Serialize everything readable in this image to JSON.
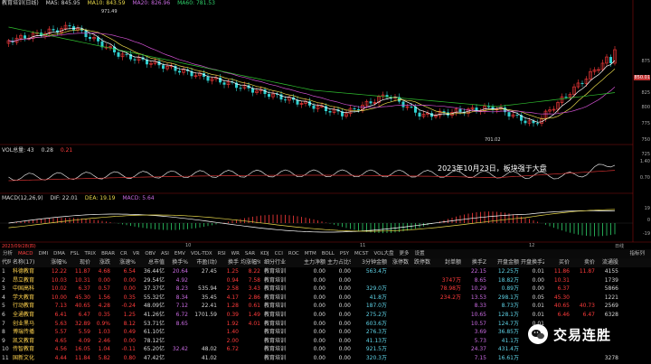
{
  "header": {
    "main_title": "教育培训(日线)",
    "ma5": "MA5: 845.95",
    "ma10": "MA10: 843.59",
    "ma20": "MA20: 826.96",
    "ma60": "MA60: 781.53",
    "price_high_label": "971.49",
    "price_low_label": "701.02",
    "vol_title": "VOL总量: 43",
    "vol_val1": "0.28",
    "vol_val2": "0.21",
    "macd_title": "MACD(12,26,9)",
    "dif": "DIF: 22.01",
    "dea": "DEA: 19.19",
    "macd": "MACD: 5.64"
  },
  "axis": {
    "price": [
      "875",
      "850.01",
      "825",
      "800",
      "775",
      "750",
      "725"
    ],
    "vol": [
      "1.40",
      "0.70"
    ],
    "macd": [
      "19",
      "0",
      "-19"
    ]
  },
  "annotation": "2023年10月23日，板块强于大盘",
  "xaxis": {
    "labels": [
      "2023/09/28(四)",
      "10",
      "11",
      "12"
    ],
    "right": "日线"
  },
  "tabs": {
    "items": [
      "分析",
      "MACD",
      "DMI",
      "DMA",
      "FSL",
      "TRIX",
      "BRAR",
      "CR",
      "VR",
      "OBV",
      "ASI",
      "EMV",
      "VOL-TDX",
      "RSI",
      "WR",
      "SAR",
      "KDJ",
      "CCI",
      "ROC",
      "MTM",
      "BOLL",
      "PSY",
      "MCST",
      "VOL大盘",
      "更多",
      "设置"
    ],
    "active": 1,
    "right": "指标列"
  },
  "table": {
    "headers": [
      "代码",
      "名称(17)",
      "涨幅%",
      "现价",
      "涨跌",
      "涨速%",
      "总市值",
      "换手%",
      "市盈(动)",
      "换手",
      "均涨幅%",
      "细分行业",
      "主力净额",
      "主力占比%",
      "3分钟金额",
      "涨停数",
      "跌停数",
      "封单额",
      "换手Z",
      "开盘金额",
      "开盘换手Z",
      "买价",
      "卖价",
      "流通股"
    ],
    "rows": [
      {
        "idx": "1",
        "name": "科德教育",
        "pct": "12.22",
        "price": "11.87",
        "chg": "4.68",
        "spd": "6.54",
        "mcap": "36.44亿",
        "turn": "20.64",
        "pe": "27.45",
        "t2": "1.25",
        "avg": "8.22",
        "ind": "教育培训",
        "net": "0.00",
        "ratio": "0.00",
        "amt3": "563.4万",
        "up": "",
        "dn": "",
        "seal": "",
        "tz": "22.15",
        "oamt": "12.25万",
        "otz": "0.01",
        "buy": "11.86",
        "sell": "11.87",
        "float": "4155"
      },
      {
        "idx": "2",
        "name": "昂立教育",
        "pct": "10.03",
        "price": "10.31",
        "chg": "0.00",
        "spd": "0.00",
        "mcap": "29.54亿",
        "turn": "4.92",
        "pe": "",
        "t2": "0.94",
        "avg": "7.58",
        "ind": "教育培训",
        "net": "0.00",
        "ratio": "0.00",
        "amt3": "",
        "up": "",
        "dn": "",
        "seal": "3747万",
        "tz": "8.65",
        "oamt": "18.82万",
        "otz": "0.00",
        "buy": "10.31",
        "sell": "",
        "float": "1739"
      },
      {
        "idx": "3",
        "name": "中国高科",
        "pct": "10.02",
        "price": "6.37",
        "chg": "0.57",
        "spd": "0.00",
        "mcap": "37.37亿",
        "turn": "8.23",
        "pe": "535.94",
        "t2": "2.58",
        "avg": "3.43",
        "ind": "教育培训",
        "net": "0.00",
        "ratio": "0.00",
        "amt3": "329.0万",
        "up": "",
        "dn": "",
        "seal": "78.98万",
        "tz": "10.29",
        "oamt": "0.89万",
        "otz": "0.00",
        "buy": "6.37",
        "sell": "",
        "float": "5866"
      },
      {
        "idx": "4",
        "name": "学大教育",
        "pct": "10.00",
        "price": "45.30",
        "chg": "1.56",
        "spd": "0.35",
        "mcap": "55.32亿",
        "turn": "8.34",
        "pe": "35.45",
        "t2": "4.17",
        "avg": "2.86",
        "ind": "教育培训",
        "net": "0.00",
        "ratio": "0.00",
        "amt3": "41.8万",
        "up": "",
        "dn": "",
        "seal": "234.2万",
        "tz": "13.53",
        "oamt": "298.1万",
        "otz": "0.05",
        "buy": "45.30",
        "sell": "",
        "float": "1221"
      },
      {
        "idx": "5",
        "name": "行动教育",
        "pct": "7.13",
        "price": "40.65",
        "chg": "4.28",
        "spd": "-0.24",
        "mcap": "48.09亿",
        "turn": "7.12",
        "pe": "22.41",
        "t2": "1.28",
        "avg": "0.61",
        "ind": "教育培训",
        "net": "0.00",
        "ratio": "0.00",
        "amt3": "187.0万",
        "up": "",
        "dn": "",
        "seal": "",
        "tz": "8.33",
        "oamt": "8.73万",
        "otz": "0.01",
        "buy": "40.65",
        "sell": "40.73",
        "float": "2569"
      },
      {
        "idx": "6",
        "name": "全通教育",
        "pct": "6.41",
        "price": "6.47",
        "chg": "0.35",
        "spd": "1.25",
        "mcap": "41.26亿",
        "turn": "6.72",
        "pe": "1701.59",
        "t2": "0.39",
        "avg": "1.49",
        "ind": "教育培训",
        "net": "0.00",
        "ratio": "0.00",
        "amt3": "275.2万",
        "up": "",
        "dn": "",
        "seal": "",
        "tz": "10.65",
        "oamt": "128.1万",
        "otz": "0.01",
        "buy": "6.46",
        "sell": "6.47",
        "float": "6328"
      },
      {
        "idx": "7",
        "name": "创业黑马",
        "pct": "5.63",
        "price": "32.89",
        "chg": "0.9%",
        "spd": "8.12",
        "mcap": "53.71亿",
        "turn": "8.65",
        "pe": "",
        "t2": "1.92",
        "avg": "4.01",
        "ind": "教育培训",
        "net": "0.00",
        "ratio": "0.00",
        "amt3": "603.6万",
        "up": "",
        "dn": "",
        "seal": "",
        "tz": "10.57",
        "oamt": "124.7万",
        "otz": "0.01",
        "buy": "",
        "sell": "",
        "float": ""
      },
      {
        "idx": "8",
        "name": "博瑞传播",
        "pct": "5.57",
        "price": "5.59",
        "chg": "1.03",
        "spd": "0.49",
        "mcap": "61.10亿",
        "turn": "",
        "pe": "",
        "t2": "1.40",
        "avg": "",
        "ind": "教育培训",
        "net": "0.00",
        "ratio": "0.00",
        "amt3": "276.3万",
        "up": "",
        "dn": "",
        "seal": "",
        "tz": "3.69",
        "oamt": "36.85万",
        "otz": "",
        "buy": "",
        "sell": "",
        "float": ""
      },
      {
        "idx": "9",
        "name": "凯文教育",
        "pct": "4.65",
        "price": "4.09",
        "chg": "2.46",
        "spd": "0.00",
        "mcap": "78.12亿",
        "turn": "",
        "pe": "",
        "t2": "2.00",
        "avg": "",
        "ind": "教育培训",
        "net": "0.00",
        "ratio": "0.00",
        "amt3": "41.13万",
        "up": "",
        "dn": "",
        "seal": "",
        "tz": "5.73",
        "oamt": "41.1万",
        "otz": "",
        "buy": "",
        "sell": "",
        "float": ""
      },
      {
        "idx": "10",
        "name": "传智教育",
        "pct": "4.56",
        "price": "16.05",
        "chg": "1.04",
        "spd": "-0.11",
        "mcap": "65.20亿",
        "turn": "32.42",
        "pe": "48.02",
        "t2": "6.72",
        "avg": "",
        "ind": "教育培训",
        "net": "0.00",
        "ratio": "0.00",
        "amt3": "921.5万",
        "up": "",
        "dn": "",
        "seal": "",
        "tz": "24.37",
        "oamt": "431.4万",
        "otz": "",
        "buy": "",
        "sell": "",
        "float": ""
      },
      {
        "idx": "11",
        "name": "国新文化",
        "pct": "4.44",
        "price": "11.84",
        "chg": "5.82",
        "spd": "0.80",
        "mcap": "47.42亿",
        "turn": "",
        "pe": "41.02",
        "t2": "",
        "avg": "",
        "ind": "教育培训",
        "net": "0.00",
        "ratio": "0.00",
        "amt3": "320.3万",
        "up": "",
        "dn": "",
        "seal": "",
        "tz": "7.15",
        "oamt": "16.61万",
        "otz": "",
        "buy": "",
        "sell": "",
        "float": "3278"
      }
    ]
  },
  "watermark": "交易连胜",
  "colors": {
    "up": "#ff3b3b",
    "down": "#2fd06a",
    "ma5": "#ffffff",
    "ma10": "#e8d84a",
    "ma20": "#d050d0",
    "ma60": "#30c030"
  }
}
